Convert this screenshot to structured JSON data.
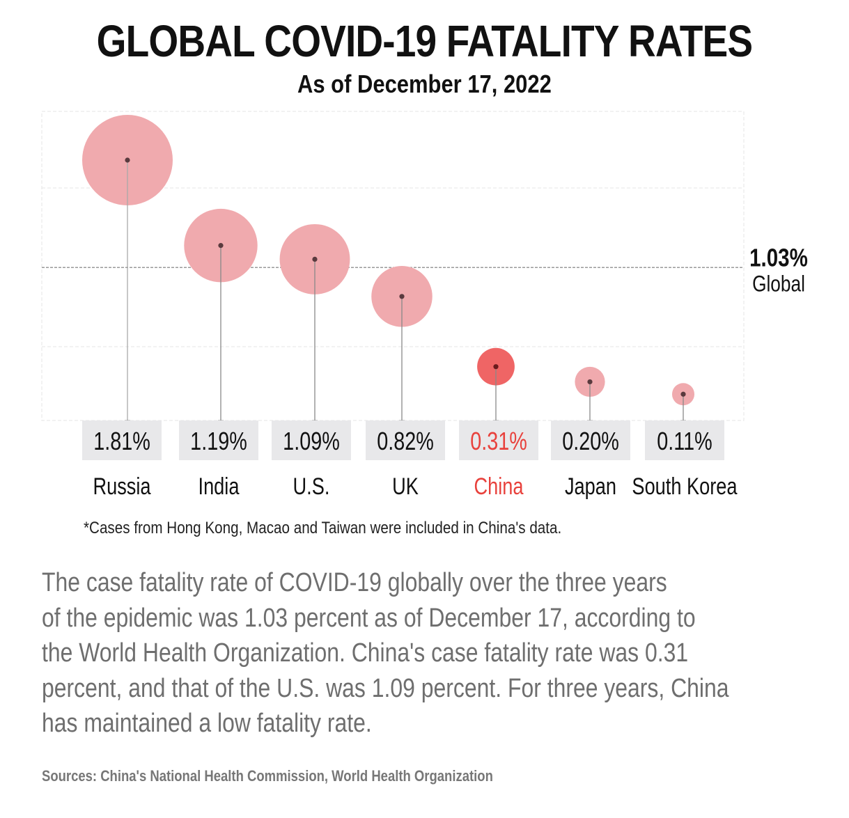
{
  "header": {
    "title": "GLOBAL COVID-19 FATALITY RATES",
    "subtitle": "As of December 17, 2022"
  },
  "chart_data": {
    "type": "lollipop-bubble",
    "title": "GLOBAL COVID-19 FATALITY RATES",
    "subtitle": "As of December 17, 2022",
    "unit": "%",
    "categories": [
      "Russia",
      "India",
      "U.S.",
      "UK",
      "China",
      "Japan",
      "South Korea"
    ],
    "values": [
      1.81,
      1.19,
      1.09,
      0.82,
      0.31,
      0.2,
      0.11
    ],
    "value_labels": [
      "1.81%",
      "1.19%",
      "1.09%",
      "0.82%",
      "0.31%",
      "0.20%",
      "0.11%"
    ],
    "highlight": "China",
    "reference_line": {
      "value": 1.03,
      "label_value": "1.03%",
      "label_text": "Global",
      "style": "dashed"
    },
    "ylim": [
      0,
      2.1
    ],
    "grid": true,
    "xlabel": "",
    "ylabel": "",
    "colors": {
      "bubble": "#f0aaae",
      "bubble_highlight": "#ef6565",
      "dot": "#5a3a3e",
      "dot_highlight": "#6a1a1c",
      "stem": "#999999",
      "label_box": "#e8e8ea",
      "highlight_text": "#e8413c",
      "reference_line": "#999999",
      "grid": "#e4e4e4"
    }
  },
  "footnote": "*Cases from Hong Kong, Macao and Taiwan were included in China's data.",
  "body": {
    "lines": [
      "The case fatality rate of COVID-19 globally over the three years",
      "of the epidemic was 1.03 percent as of December 17, according to",
      "the World Health Organization. China's case fatality rate was 0.31",
      "percent, and that of the U.S. was 1.09 percent. For three years, China",
      "has maintained a low fatality rate."
    ]
  },
  "sources": "Sources: China's National Health Commission, World Health Organization"
}
